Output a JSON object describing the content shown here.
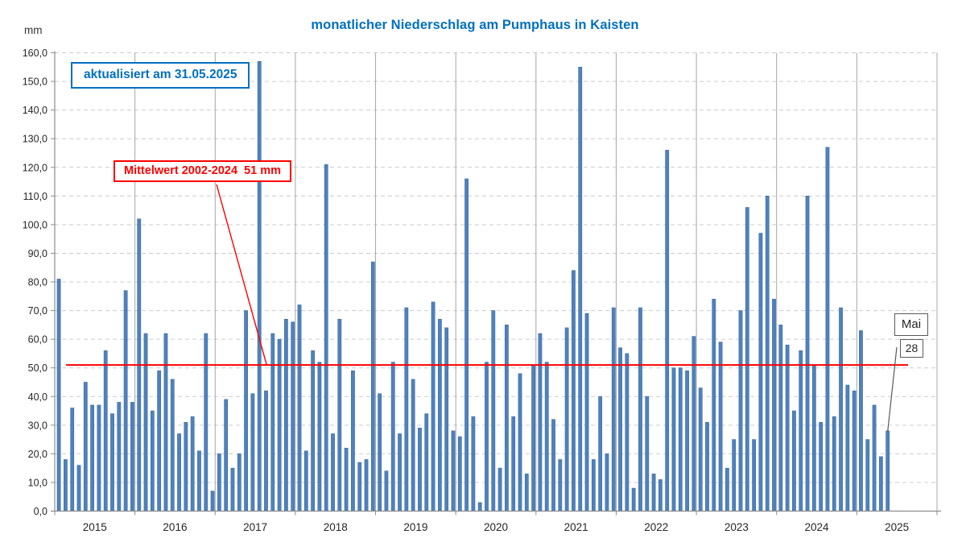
{
  "title": "monatlicher Niederschlag am Pumphaus in Kaisten",
  "y_unit_label": "mm",
  "annotations": {
    "updated_label": "aktualisiert am 31.05.2025",
    "mean_label": "Mittelwert 2002-2024  51 mm",
    "callout_month": "Mai",
    "callout_value": "28"
  },
  "colors": {
    "bar": "#4F81BD",
    "bar_edge": "#3E6DA5",
    "mean_line": "#FF0000",
    "title_text": "#0070C0",
    "annotation_blue": "#0070C0",
    "annotation_red": "#FF0000",
    "axis_text": "#262626",
    "h_gridline": "#CCCCCC",
    "year_gridline": "#A6A6A6",
    "axis_line": "#8C8C8C",
    "callout_border": "#595959"
  },
  "chart_data": {
    "type": "bar",
    "title": "monatlicher Niederschlag am Pumphaus in Kaisten",
    "xlabel": "",
    "ylabel": "mm",
    "ylim": [
      0,
      160
    ],
    "ytick_step": 10,
    "ytick_label_style": "decimal comma, one decimal place (160,0 ... 0,0)",
    "grid": "horizontal dashed every 10 mm; vertical solid line at each year boundary",
    "legend": "none",
    "mean_line_value": 51,
    "months_per_year": 12,
    "x_year_labels": [
      "2015",
      "2016",
      "2017",
      "2018",
      "2019",
      "2020",
      "2021",
      "2022",
      "2023",
      "2024",
      "2025"
    ],
    "last_point": {
      "year": 2025,
      "month": "Mai",
      "value": 28
    },
    "years": [
      {
        "year": 2015,
        "values": [
          81,
          18,
          36,
          16,
          45,
          37,
          37,
          56,
          34,
          38,
          77,
          38
        ]
      },
      {
        "year": 2016,
        "values": [
          102,
          62,
          35,
          49,
          62,
          46,
          27,
          31,
          33,
          21,
          62,
          7
        ]
      },
      {
        "year": 2017,
        "values": [
          20,
          39,
          15,
          20,
          70,
          41,
          157,
          42,
          62,
          60,
          67,
          66
        ]
      },
      {
        "year": 2018,
        "values": [
          72,
          21,
          56,
          52,
          121,
          27,
          67,
          22,
          49,
          17,
          18,
          87
        ]
      },
      {
        "year": 2019,
        "values": [
          41,
          14,
          52,
          27,
          71,
          46,
          29,
          34,
          73,
          67,
          64,
          28
        ]
      },
      {
        "year": 2020,
        "values": [
          26,
          116,
          33,
          3,
          52,
          70,
          15,
          65,
          33,
          48,
          13,
          51
        ]
      },
      {
        "year": 2021,
        "values": [
          62,
          52,
          32,
          18,
          64,
          84,
          155,
          69,
          18,
          40,
          20,
          71
        ]
      },
      {
        "year": 2022,
        "values": [
          57,
          55,
          8,
          71,
          40,
          13,
          11,
          126,
          50,
          50,
          49,
          61
        ]
      },
      {
        "year": 2023,
        "values": [
          43,
          31,
          74,
          59,
          15,
          25,
          70,
          106,
          25,
          97,
          110,
          74
        ]
      },
      {
        "year": 2024,
        "values": [
          65,
          58,
          35,
          56,
          110,
          51,
          31,
          127,
          33,
          71,
          44,
          42
        ]
      },
      {
        "year": 2025,
        "values": [
          63,
          25,
          37,
          19,
          28
        ]
      }
    ]
  }
}
